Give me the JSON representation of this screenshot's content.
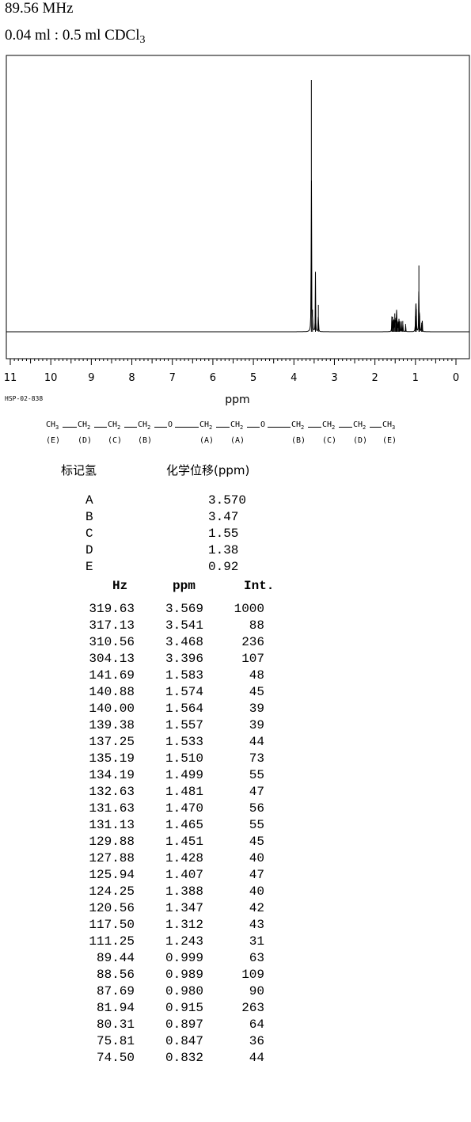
{
  "header": {
    "frequency": "89.56 MHz",
    "solvent_text": "0.04 ml : 0.5 ml CDCl",
    "solvent_sub": "3"
  },
  "code": "HSP-02-838",
  "structure": {
    "groups": [
      "CH3",
      "CH2",
      "CH2",
      "CH2",
      "O",
      "CH2",
      "CH2",
      "O",
      "CH2",
      "CH2",
      "CH2",
      "CH3"
    ],
    "labels": [
      "(E)",
      "(D)",
      "(C)",
      "(B)",
      "(A)",
      "(A)",
      "(B)",
      "(C)",
      "(D)",
      "(E)"
    ]
  },
  "assignments": {
    "col_label": "标记氢",
    "col_shift": "化学位移(ppm)",
    "rows": [
      {
        "label": "A",
        "shift": "3.570"
      },
      {
        "label": "B",
        "shift": "3.47"
      },
      {
        "label": "C",
        "shift": "1.55"
      },
      {
        "label": "D",
        "shift": "1.38"
      },
      {
        "label": "E",
        "shift": "0.92"
      }
    ]
  },
  "peak_table": {
    "headers": [
      "Hz",
      "ppm",
      "Int."
    ],
    "rows": [
      [
        "319.63",
        "3.569",
        "1000"
      ],
      [
        "317.13",
        "3.541",
        "88"
      ],
      [
        "310.56",
        "3.468",
        "236"
      ],
      [
        "304.13",
        "3.396",
        "107"
      ],
      [
        "141.69",
        "1.583",
        "48"
      ],
      [
        "140.88",
        "1.574",
        "45"
      ],
      [
        "140.00",
        "1.564",
        "39"
      ],
      [
        "139.38",
        "1.557",
        "39"
      ],
      [
        "137.25",
        "1.533",
        "44"
      ],
      [
        "135.19",
        "1.510",
        "73"
      ],
      [
        "134.19",
        "1.499",
        "55"
      ],
      [
        "132.63",
        "1.481",
        "47"
      ],
      [
        "131.63",
        "1.470",
        "56"
      ],
      [
        "131.13",
        "1.465",
        "55"
      ],
      [
        "129.88",
        "1.451",
        "45"
      ],
      [
        "127.88",
        "1.428",
        "40"
      ],
      [
        "125.94",
        "1.407",
        "47"
      ],
      [
        "124.25",
        "1.388",
        "40"
      ],
      [
        "120.56",
        "1.347",
        "42"
      ],
      [
        "117.50",
        "1.312",
        "43"
      ],
      [
        "111.25",
        "1.243",
        "31"
      ],
      [
        "89.44",
        "0.999",
        "63"
      ],
      [
        "88.56",
        "0.989",
        "109"
      ],
      [
        "87.69",
        "0.980",
        "90"
      ],
      [
        "81.94",
        "0.915",
        "263"
      ],
      [
        "80.31",
        "0.897",
        "64"
      ],
      [
        "75.81",
        "0.847",
        "36"
      ],
      [
        "74.50",
        "0.832",
        "44"
      ]
    ]
  },
  "chart_data": {
    "type": "line",
    "xlabel": "ppm",
    "xlim": [
      11,
      0
    ],
    "ylim": [
      0,
      1000
    ],
    "x_ticks": [
      "11",
      "10",
      "9",
      "8",
      "7",
      "6",
      "5",
      "4",
      "3",
      "2",
      "1",
      "0"
    ],
    "peaks_ppm": [
      3.569,
      3.541,
      3.468,
      3.396,
      1.583,
      1.574,
      1.564,
      1.557,
      1.533,
      1.51,
      1.499,
      1.481,
      1.47,
      1.465,
      1.451,
      1.428,
      1.407,
      1.388,
      1.347,
      1.312,
      1.243,
      0.999,
      0.989,
      0.98,
      0.915,
      0.897,
      0.847,
      0.832
    ],
    "peaks_intensity": [
      1000,
      88,
      236,
      107,
      48,
      45,
      39,
      39,
      44,
      73,
      55,
      47,
      56,
      55,
      45,
      40,
      47,
      40,
      42,
      43,
      31,
      63,
      109,
      90,
      263,
      64,
      36,
      44
    ],
    "grid": false
  }
}
